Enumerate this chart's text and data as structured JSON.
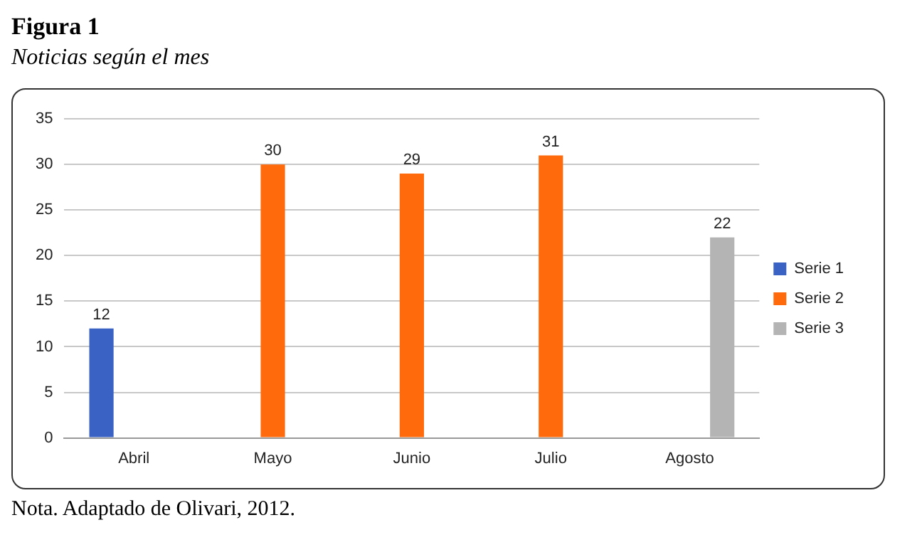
{
  "chart_data": {
    "type": "bar",
    "title": "Figura 1",
    "subtitle": "Noticias según el mes",
    "categories": [
      "Abril",
      "Mayo",
      "Junio",
      "Julio",
      "Agosto"
    ],
    "series": [
      {
        "name": "Serie 1",
        "color": "#3a62c4",
        "values": [
          12,
          null,
          null,
          null,
          null
        ]
      },
      {
        "name": "Serie 2",
        "color": "#ff6a0c",
        "values": [
          null,
          30,
          29,
          31,
          null
        ]
      },
      {
        "name": "Serie 3",
        "color": "#b4b4b4",
        "values": [
          null,
          null,
          null,
          null,
          22
        ]
      }
    ],
    "ylim": [
      0,
      35
    ],
    "yticks": [
      0,
      5,
      10,
      15,
      20,
      25,
      30,
      35
    ],
    "grid": "y",
    "legend": "right",
    "data_labels": true,
    "annotations": [
      "Nota. Adaptado de Olivari, 2012."
    ]
  }
}
